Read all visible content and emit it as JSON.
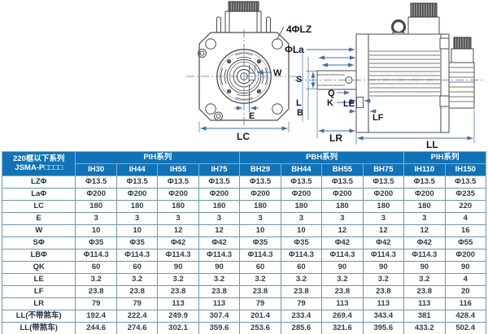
{
  "colors": {
    "header_bg": "#1173b6",
    "table_border": "#6d94b5",
    "dimension_blue": "#3f6db0",
    "drawing_ink": "#4a4a4a"
  },
  "diagram": {
    "front_labels": {
      "holes": "4ΦLZ",
      "la": "ΦLa",
      "w": "W",
      "e": "E",
      "lc": "LC"
    },
    "side_labels": {
      "s": "S",
      "q": "Q",
      "k": "K",
      "l": "L",
      "b": "B",
      "le": "LE",
      "lf": "LF",
      "lr": "LR",
      "ll": "LL"
    }
  },
  "table": {
    "corner_header": [
      "220框以下系列",
      "JSMA-P□□□□"
    ],
    "groups": [
      {
        "label": "PIH系列",
        "span": 4
      },
      {
        "label": "PBH系列",
        "span": 4
      },
      {
        "label": "PIH系列",
        "span": 2
      }
    ],
    "models": [
      "IH30",
      "IH44",
      "IH55",
      "IH75",
      "BH29",
      "BH44",
      "BH55",
      "BH75",
      "IH110",
      "IH150"
    ],
    "rows": [
      {
        "label": "LZΦ",
        "values": [
          "Φ13.5",
          "Φ13.5",
          "Φ13.5",
          "Φ13.5",
          "Φ13.5",
          "Φ13.5",
          "Φ13.5",
          "Φ13.5",
          "Φ13.5",
          "Φ13.5"
        ]
      },
      {
        "label": "LaΦ",
        "values": [
          "Φ200",
          "Φ200",
          "Φ200",
          "Φ200",
          "Φ200",
          "Φ200",
          "Φ200",
          "Φ200",
          "Φ200",
          "Φ235"
        ]
      },
      {
        "label": "LC",
        "values": [
          "180",
          "180",
          "180",
          "180",
          "180",
          "180",
          "180",
          "180",
          "180",
          "220"
        ]
      },
      {
        "label": "E",
        "values": [
          "3",
          "3",
          "3",
          "3",
          "3",
          "3",
          "3",
          "3",
          "3",
          "4"
        ]
      },
      {
        "label": "W",
        "values": [
          "10",
          "10",
          "12",
          "12",
          "10",
          "10",
          "12",
          "12",
          "12",
          "16"
        ]
      },
      {
        "label": "SΦ",
        "values": [
          "Φ35",
          "Φ35",
          "Φ42",
          "Φ42",
          "Φ35",
          "Φ35",
          "Φ42",
          "Φ42",
          "Φ42",
          "Φ55"
        ]
      },
      {
        "label": "LBΦ",
        "values": [
          "Φ114.3",
          "Φ114.3",
          "Φ114.3",
          "Φ114.3",
          "Φ114.3",
          "Φ114.3",
          "Φ114.3",
          "Φ114.3",
          "Φ114.3",
          "Φ200"
        ]
      },
      {
        "label": "QK",
        "values": [
          "60",
          "60",
          "90",
          "90",
          "60",
          "60",
          "90",
          "90",
          "90",
          "90"
        ]
      },
      {
        "label": "LE",
        "values": [
          "3.2",
          "3.2",
          "3.2",
          "3.2",
          "3.2",
          "3.2",
          "3.2",
          "3.2",
          "3.2",
          "4"
        ]
      },
      {
        "label": "LF",
        "values": [
          "23.8",
          "23.8",
          "23.8",
          "23.8",
          "23.8",
          "23.8",
          "23.8",
          "23.8",
          "23.8",
          "20"
        ]
      },
      {
        "label": "LR",
        "values": [
          "79",
          "79",
          "113",
          "113",
          "79",
          "79",
          "113",
          "113",
          "113",
          "116"
        ]
      },
      {
        "label": "LL(不带煞车)",
        "values": [
          "192.4",
          "222.4",
          "249.9",
          "307.4",
          "201.4",
          "233.4",
          "269.4",
          "343.4",
          "381",
          "428.4"
        ]
      },
      {
        "label": "LL(带煞车)",
        "values": [
          "244.6",
          "274.6",
          "302.1",
          "359.6",
          "253.6",
          "285.6",
          "321.6",
          "395.6",
          "433.2",
          "502.4"
        ]
      }
    ]
  }
}
